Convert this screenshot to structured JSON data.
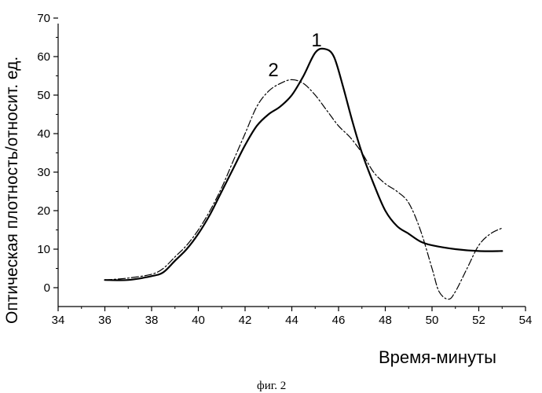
{
  "chart_data": {
    "type": "line",
    "title": "",
    "xlabel": "Время-минуты",
    "ylabel": "Оптическая плотность/относит. ед.",
    "xlim": [
      34,
      54
    ],
    "ylim": [
      -5,
      70
    ],
    "x_ticks": [
      "34",
      "36",
      "38",
      "40",
      "42",
      "44",
      "46",
      "48",
      "50",
      "52",
      "54"
    ],
    "y_ticks": [
      "0",
      "10",
      "20",
      "30",
      "40",
      "50",
      "60",
      "70"
    ],
    "grid": false,
    "series": [
      {
        "name": "1",
        "style": "solid",
        "x": [
          36,
          37,
          38,
          38.5,
          39,
          39.5,
          40,
          40.5,
          41,
          41.5,
          42,
          42.5,
          43,
          43.5,
          44,
          44.5,
          45,
          45.4,
          45.8,
          46.2,
          46.6,
          47,
          47.5,
          48,
          48.5,
          49,
          49.5,
          50,
          51,
          52,
          53
        ],
        "y": [
          2,
          2,
          3,
          4,
          7,
          10,
          14,
          19,
          25,
          31,
          37,
          42,
          45,
          47,
          50,
          55,
          61,
          62,
          60,
          52,
          43,
          35,
          27,
          20,
          16,
          14,
          12,
          11,
          10,
          9.5,
          9.5
        ]
      },
      {
        "name": "2",
        "style": "dash-dot",
        "x": [
          36,
          37,
          38,
          38.5,
          39,
          39.5,
          40,
          40.5,
          41,
          41.5,
          42,
          42.5,
          43,
          43.5,
          44,
          44.5,
          45,
          45.5,
          46,
          46.5,
          47,
          47.5,
          48,
          48.5,
          49,
          49.5,
          50,
          50.3,
          50.7,
          51,
          51.5,
          52,
          52.5,
          53
        ],
        "y": [
          2,
          2.5,
          3.5,
          5,
          8,
          11,
          15,
          20,
          26,
          33,
          40,
          47,
          51,
          53,
          54,
          53,
          50,
          46,
          42,
          39,
          35,
          30,
          27,
          25,
          22,
          15,
          5,
          -1,
          -3,
          -1,
          5,
          11,
          14,
          15.5
        ]
      }
    ]
  },
  "caption": "фиг. 2"
}
